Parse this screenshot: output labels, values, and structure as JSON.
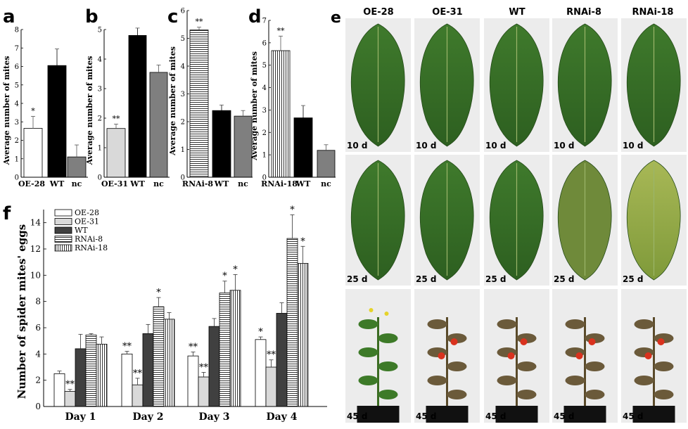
{
  "panel_labels": [
    "a",
    "b",
    "c",
    "d",
    "e",
    "f"
  ],
  "colors": {
    "white": "#ffffff",
    "lightgray": "#d9d9d9",
    "black": "#000000",
    "gray": "#7f7f7f",
    "darkgray": "#404040"
  },
  "panel_e": {
    "columns": [
      "OE-28",
      "OE-31",
      "WT",
      "RNAi-8",
      "RNAi-18"
    ],
    "rows": [
      "10 d",
      "25 d",
      "45 d"
    ]
  },
  "chart_data": [
    {
      "panel": "a",
      "type": "bar",
      "categories": [
        "OE-28",
        "WT",
        "nc"
      ],
      "values": [
        2.65,
        6.05,
        1.1
      ],
      "errors": [
        0.65,
        0.9,
        0.65
      ],
      "significance": [
        "*",
        "",
        ""
      ],
      "patterns": [
        "white",
        "black",
        "gray"
      ],
      "ylabel": "Average number of mites",
      "ylim": [
        0,
        8
      ],
      "yticks": [
        0,
        1,
        2,
        3,
        4,
        5,
        6,
        7,
        8
      ]
    },
    {
      "panel": "b",
      "type": "bar",
      "categories": [
        "OE-31",
        "WT",
        "nc"
      ],
      "values": [
        1.65,
        4.8,
        3.55
      ],
      "errors": [
        0.15,
        0.25,
        0.25
      ],
      "significance": [
        "**",
        "",
        ""
      ],
      "patterns": [
        "lightgray",
        "black",
        "gray"
      ],
      "ylabel": "Average number of mites",
      "ylim": [
        0,
        5
      ],
      "yticks": [
        0,
        1,
        2,
        3,
        4,
        5
      ]
    },
    {
      "panel": "c",
      "type": "bar",
      "categories": [
        "RNAi-8",
        "WT",
        "nc"
      ],
      "values": [
        5.3,
        2.4,
        2.2
      ],
      "errors": [
        0.1,
        0.2,
        0.2
      ],
      "significance": [
        "**",
        "",
        ""
      ],
      "patterns": [
        "hlines",
        "black",
        "gray"
      ],
      "ylabel": "Average number of mites",
      "ylim": [
        0,
        6
      ],
      "yticks": [
        0,
        1,
        2,
        3,
        4,
        5,
        6
      ]
    },
    {
      "panel": "d",
      "type": "bar",
      "categories": [
        "RNAi-18",
        "WT",
        "nc"
      ],
      "values": [
        5.65,
        2.65,
        1.2
      ],
      "errors": [
        0.65,
        0.55,
        0.25
      ],
      "significance": [
        "**",
        "",
        ""
      ],
      "patterns": [
        "vlines",
        "black",
        "gray"
      ],
      "ylabel": "Average number of mites",
      "ylim": [
        0,
        7
      ],
      "yticks": [
        0,
        1,
        2,
        3,
        4,
        5,
        6,
        7
      ]
    },
    {
      "panel": "f",
      "type": "bar",
      "categories": [
        "Day 1",
        "Day 2",
        "Day 3",
        "Day 4"
      ],
      "series": [
        {
          "name": "OE-28",
          "values": [
            2.5,
            4.0,
            3.85,
            5.1
          ],
          "errors": [
            0.2,
            0.2,
            0.3,
            0.2
          ],
          "significance": [
            "",
            "**",
            "**",
            "*"
          ],
          "pattern": "white"
        },
        {
          "name": "OE-31",
          "values": [
            1.15,
            1.65,
            2.25,
            3.0
          ],
          "errors": [
            0.15,
            0.5,
            0.35,
            0.55
          ],
          "significance": [
            "**",
            "**",
            "**",
            "**"
          ],
          "pattern": "lightgray"
        },
        {
          "name": "WT",
          "values": [
            4.4,
            5.55,
            6.1,
            7.1
          ],
          "errors": [
            1.1,
            0.7,
            0.6,
            0.8
          ],
          "significance": [
            "",
            "",
            "",
            ""
          ],
          "pattern": "darkgray"
        },
        {
          "name": "RNAi-8",
          "values": [
            5.45,
            7.6,
            8.65,
            12.8
          ],
          "errors": [
            0.1,
            0.7,
            0.9,
            1.8
          ],
          "significance": [
            "",
            "*",
            "*",
            "*"
          ],
          "pattern": "hlines"
        },
        {
          "name": "RNAi-18",
          "values": [
            4.75,
            6.65,
            8.85,
            10.9
          ],
          "errors": [
            0.55,
            0.5,
            1.2,
            1.3
          ],
          "significance": [
            "",
            "",
            "*",
            "*"
          ],
          "pattern": "vlines"
        }
      ],
      "ylabel": "Number of spider mites' eggs",
      "ylim": [
        0,
        15
      ],
      "yticks": [
        0,
        2,
        4,
        6,
        8,
        10,
        12,
        14
      ],
      "legend": "top-left"
    }
  ]
}
